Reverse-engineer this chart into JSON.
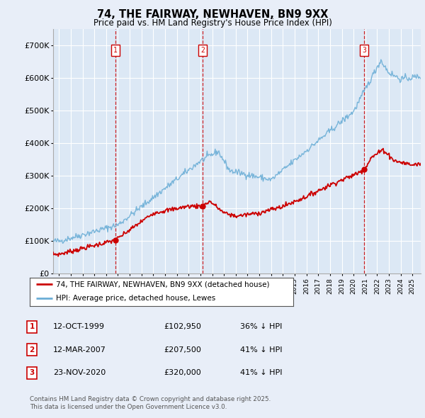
{
  "title": "74, THE FAIRWAY, NEWHAVEN, BN9 9XX",
  "subtitle": "Price paid vs. HM Land Registry's House Price Index (HPI)",
  "background_color": "#e8eef8",
  "plot_bg_color": "#dce8f5",
  "grid_color": "#ffffff",
  "ylim": [
    0,
    750000
  ],
  "yticks": [
    0,
    100000,
    200000,
    300000,
    400000,
    500000,
    600000,
    700000
  ],
  "ytick_labels": [
    "£0",
    "£100K",
    "£200K",
    "£300K",
    "£400K",
    "£500K",
    "£600K",
    "£700K"
  ],
  "xlim_start": 1994.5,
  "xlim_end": 2025.7,
  "hpi_color": "#6baed6",
  "price_color": "#cc0000",
  "dashed_line_color": "#cc0000",
  "sale_points": [
    {
      "year": 1999.79,
      "price": 102950,
      "label": "1"
    },
    {
      "year": 2007.19,
      "price": 207500,
      "label": "2"
    },
    {
      "year": 2020.9,
      "price": 320000,
      "label": "3"
    }
  ],
  "table_rows": [
    {
      "num": "1",
      "date": "12-OCT-1999",
      "price": "£102,950",
      "pct": "36% ↓ HPI"
    },
    {
      "num": "2",
      "date": "12-MAR-2007",
      "price": "£207,500",
      "pct": "41% ↓ HPI"
    },
    {
      "num": "3",
      "date": "23-NOV-2020",
      "price": "£320,000",
      "pct": "41% ↓ HPI"
    }
  ],
  "legend_line1": "74, THE FAIRWAY, NEWHAVEN, BN9 9XX (detached house)",
  "legend_line2": "HPI: Average price, detached house, Lewes",
  "footnote1": "Contains HM Land Registry data © Crown copyright and database right 2025.",
  "footnote2": "This data is licensed under the Open Government Licence v3.0."
}
